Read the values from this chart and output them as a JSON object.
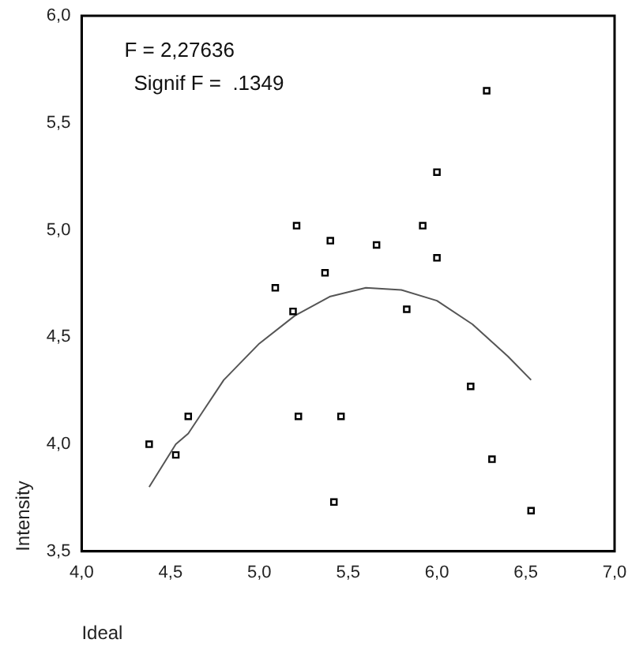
{
  "chart_data": {
    "type": "scatter",
    "xlabel": "Ideal",
    "ylabel": "Intensity",
    "annotations": [
      "F = 2,27636",
      "Signif F =  .1349"
    ],
    "xlim": [
      4,
      7
    ],
    "xticks": [
      {
        "value": 4,
        "label": "4,0"
      },
      {
        "value": 4.5,
        "label": "4,5"
      },
      {
        "value": 5,
        "label": "5,0"
      },
      {
        "value": 5.5,
        "label": "5,5"
      },
      {
        "value": 6,
        "label": "6,0"
      },
      {
        "value": 6.5,
        "label": "6,5"
      },
      {
        "value": 7,
        "label": "7,0"
      }
    ],
    "ylim": [
      3.5,
      6
    ],
    "yticks": [
      {
        "value": 3.5,
        "label": "3,5"
      },
      {
        "value": 4,
        "label": "4,0"
      },
      {
        "value": 4.5,
        "label": "4,5"
      },
      {
        "value": 5,
        "label": "5,0"
      },
      {
        "value": 5.5,
        "label": "5,5"
      },
      {
        "value": 6,
        "label": "6,0"
      }
    ],
    "grid": false,
    "legend": false,
    "series": [
      {
        "color": "#000000",
        "marker": "square",
        "x": [
          6.28,
          6.0,
          5.21,
          5.92,
          5.4,
          5.66,
          6.0,
          5.37,
          5.09,
          5.83,
          5.19,
          6.19,
          4.6,
          5.22,
          5.46,
          4.38,
          4.53,
          6.31,
          5.42,
          6.53
        ],
        "values": [
          5.65,
          5.27,
          5.02,
          5.02,
          4.95,
          4.93,
          4.87,
          4.8,
          4.73,
          4.63,
          4.62,
          4.27,
          4.13,
          4.13,
          4.13,
          4.0,
          3.95,
          3.93,
          3.73,
          3.69
        ]
      },
      {
        "type": "line",
        "color": "#555555",
        "marker": "none",
        "line_style": "solid",
        "x": [
          4.38,
          4.53,
          4.6,
          4.8,
          5.0,
          5.2,
          5.4,
          5.6,
          5.8,
          6.0,
          6.2,
          6.4,
          6.53
        ],
        "values": [
          3.8,
          4.0,
          4.05,
          4.3,
          4.47,
          4.6,
          4.69,
          4.73,
          4.72,
          4.67,
          4.56,
          4.41,
          4.3
        ]
      }
    ]
  }
}
